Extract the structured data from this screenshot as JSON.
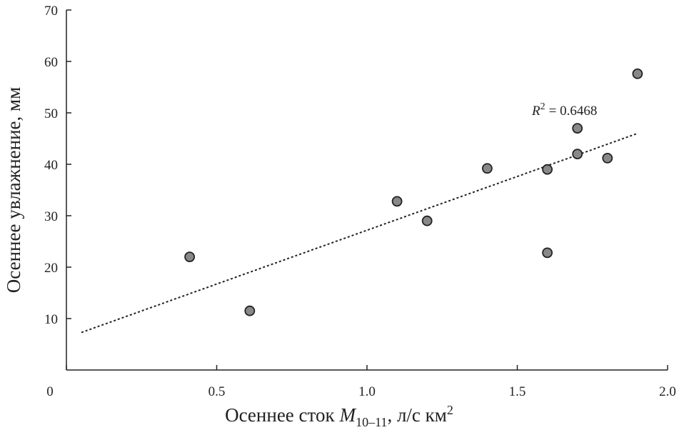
{
  "chart_data": {
    "type": "scatter",
    "y_label": "Осеннее увлажнение, мм",
    "x_label": {
      "text": "Осеннее сток",
      "var": "M",
      "sub": "10–11",
      "unit": ", л/с км",
      "sup": "2"
    },
    "annotation": {
      "var": "R",
      "sup": "2",
      "text": "= 0.6468"
    },
    "x": [
      0.41,
      0.61,
      1.1,
      1.2,
      1.4,
      1.6,
      1.6,
      1.7,
      1.7,
      1.8,
      1.9
    ],
    "series": [
      {
        "color": "#888888",
        "values": [
          22,
          11.5,
          32.8,
          29,
          39.2,
          39,
          22.8,
          47,
          42,
          41.2,
          57.6
        ]
      }
    ],
    "trendline": {
      "x": [
        0.05,
        1.9
      ],
      "y": [
        7.3,
        46
      ]
    },
    "xlim": [
      0,
      2
    ],
    "ylim": [
      0,
      70
    ],
    "xticks": [
      0,
      0.5,
      {
        "value": 1,
        "label": "1.0"
      },
      1.5,
      {
        "value": 2,
        "label": "2.0"
      }
    ],
    "yticks": [
      10,
      20,
      30,
      40,
      50,
      60,
      70
    ]
  }
}
